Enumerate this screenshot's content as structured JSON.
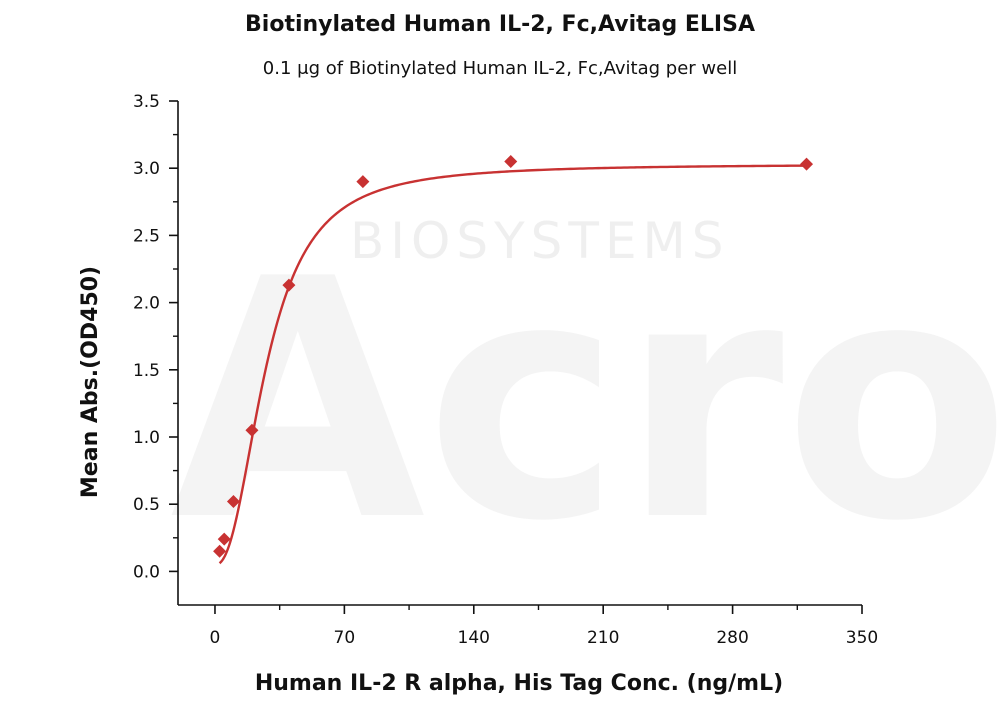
{
  "chart_data": {
    "type": "scatter",
    "title": "Biotinylated Human IL-2, Fc,Avitag ELISA",
    "subtitle": "0.1 μg of Biotinylated Human IL-2, Fc,Avitag per well",
    "xlabel": "Human IL-2 R alpha, His Tag Conc. (ng/mL)",
    "ylabel": "Mean Abs.(OD450)",
    "xlim": [
      -20,
      350
    ],
    "ylim": [
      -0.25,
      3.5
    ],
    "x_ticks": [
      0,
      70,
      140,
      210,
      280,
      350
    ],
    "y_ticks": [
      0.0,
      0.5,
      1.0,
      1.5,
      2.0,
      2.5,
      3.0,
      3.5
    ],
    "x_tick_labels": [
      "0",
      "70",
      "140",
      "210",
      "280",
      "350"
    ],
    "y_tick_labels": [
      "0.0",
      "0.5",
      "1.0",
      "1.5",
      "2.0",
      "2.5",
      "3.0",
      "3.5"
    ],
    "grid": false,
    "series": [
      {
        "x": [
          2.5,
          5,
          10,
          20,
          40,
          80,
          160,
          320
        ],
        "y": [
          0.15,
          0.24,
          0.52,
          1.05,
          2.13,
          2.9,
          3.05,
          3.03
        ]
      }
    ],
    "fit_curve": {
      "type": "four-parameter logistic",
      "bottom": 0.05,
      "top": 3.03,
      "ec50": 28,
      "hill": 2.3
    },
    "colors": {
      "series": "#c83232",
      "axis": "#111111"
    }
  },
  "watermark": {
    "brand": "Acro",
    "tagline": "BIOSYSTEMS"
  }
}
